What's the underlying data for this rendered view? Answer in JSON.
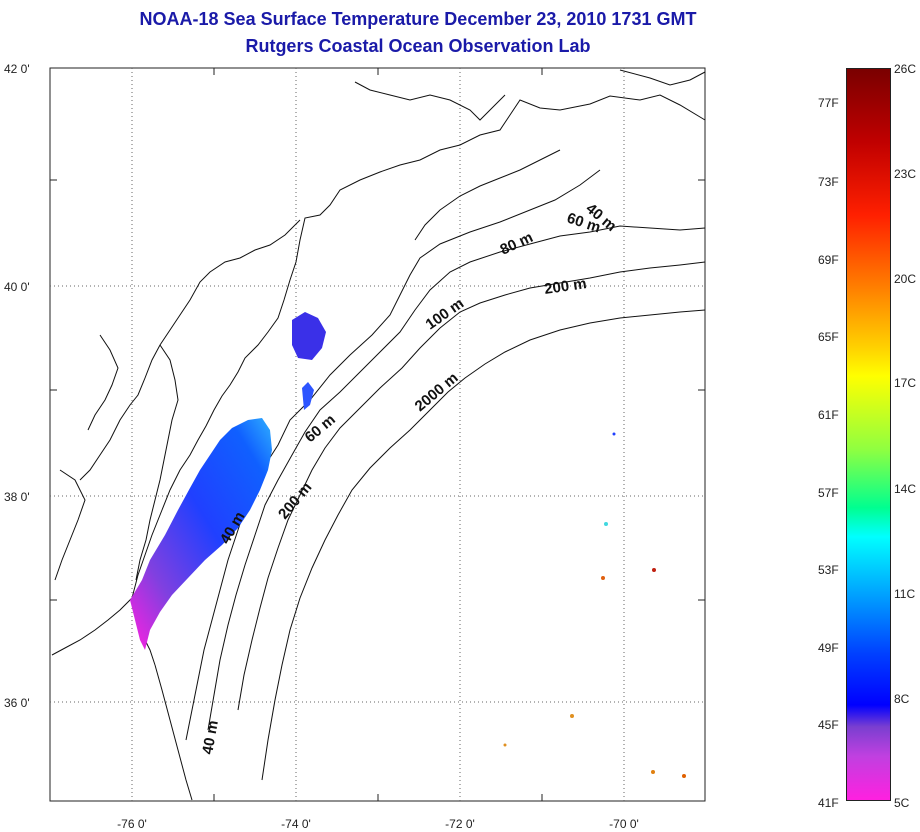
{
  "title": {
    "line1": "NOAA-18 Sea Surface Temperature December 23, 2010 1731 GMT",
    "line2": "Rutgers Coastal Ocean Observation Lab"
  },
  "map": {
    "lat_ticks": [
      "42 0'",
      "40 0'",
      "38 0'",
      "36 0'"
    ],
    "lon_ticks": [
      "-76 0'",
      "-74 0'",
      "-72 0'",
      "-70 0'"
    ],
    "contour_labels": [
      "40 m",
      "60 m",
      "80 m",
      "200 m",
      "100 m",
      "2000 m",
      "60 m",
      "40 m",
      "200 m",
      "40 m"
    ]
  },
  "colorbar": {
    "fahrenheit_labels": [
      "77F",
      "73F",
      "69F",
      "65F",
      "61F",
      "57F",
      "53F",
      "49F",
      "45F",
      "41F"
    ],
    "celsius_labels": [
      "26C",
      "23C",
      "20C",
      "17C",
      "14C",
      "11C",
      "8C",
      "5C"
    ],
    "colors": {
      "top": "#7a0000",
      "red": "#ff2000",
      "orange": "#ff8000",
      "yellow": "#ffff00",
      "green": "#00ff90",
      "cyan": "#00ffff",
      "blue": "#0000ff",
      "magenta": "#ff20e0"
    }
  }
}
